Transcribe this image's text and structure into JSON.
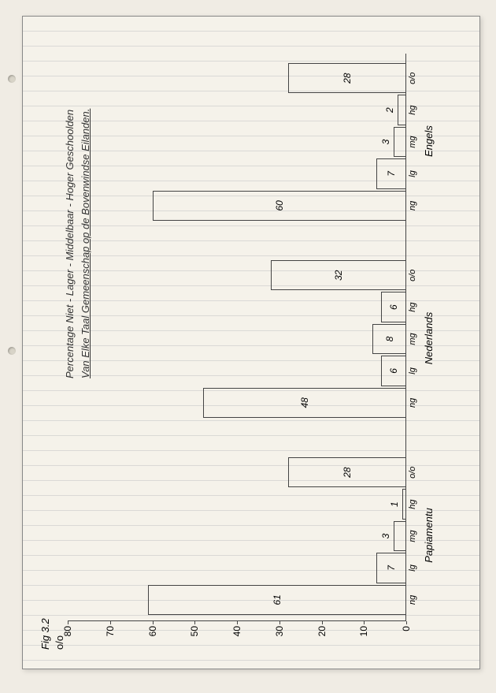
{
  "figure_label": "Fig 3.2",
  "percent_symbol": "o/o",
  "title_line1": "Percentage Niet - Lager - Middelbaar - Hoger Geschoolden",
  "title_line2_prefix": "Van Elke Taal Gemeenschap op de ",
  "title_line2_underlined": "Bovenwindse Eilanden",
  "chart": {
    "type": "bar",
    "ylim": [
      0,
      80
    ],
    "ytick_step": 10,
    "yticks": [
      0,
      10,
      20,
      30,
      40,
      50,
      60,
      70,
      80
    ],
    "bar_border_color": "#444444",
    "bar_fill": "transparent",
    "axis_color": "#444444",
    "background_color": "#f5f2ea",
    "ruled_line_color": "#c8c8c8",
    "font_family": "cursive",
    "font_color": "#333333",
    "label_fontsize": 12,
    "title_fontsize": 13,
    "groups": [
      {
        "name": "Papiamentu",
        "categories": [
          "ng",
          "lg",
          "mg",
          "hg",
          "o/o"
        ],
        "values": [
          61,
          7,
          3,
          1,
          28
        ]
      },
      {
        "name": "Nederlands",
        "categories": [
          "ng",
          "lg",
          "mg",
          "hg",
          "o/o"
        ],
        "values": [
          48,
          6,
          8,
          6,
          32
        ]
      },
      {
        "name": "Engels",
        "categories": [
          "ng",
          "lg",
          "mg",
          "hg",
          "o/o"
        ],
        "values": [
          60,
          7,
          3,
          2,
          28
        ]
      }
    ]
  }
}
